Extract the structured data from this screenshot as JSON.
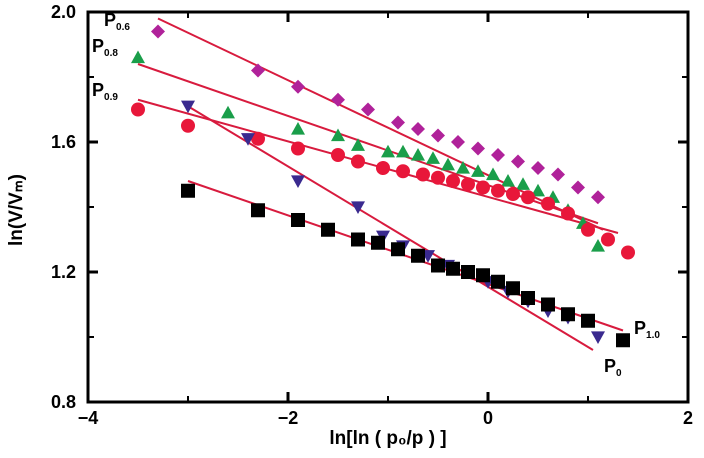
{
  "chart_data": {
    "type": "scatter",
    "xlabel": "ln[ln ( p₀/p ) ]",
    "ylabel": "ln(V/Vₘ)",
    "xlim": [
      -4,
      2
    ],
    "ylim": [
      0.8,
      2.0
    ],
    "x_ticks": [
      "−4",
      "−2",
      "0",
      "2"
    ],
    "y_ticks": [
      "0.8",
      "1.2",
      "1.6",
      "2.0"
    ],
    "grid": false,
    "series": [
      {
        "name": "P0.6",
        "label_main": "P",
        "label_sub": "0.6",
        "marker": "diamond",
        "color": "#b0229a",
        "points": [
          [
            -3.3,
            1.94
          ],
          [
            -2.3,
            1.82
          ],
          [
            -1.9,
            1.77
          ],
          [
            -1.5,
            1.73
          ],
          [
            -1.2,
            1.7
          ],
          [
            -0.9,
            1.66
          ],
          [
            -0.7,
            1.64
          ],
          [
            -0.5,
            1.62
          ],
          [
            -0.3,
            1.6
          ],
          [
            -0.1,
            1.58
          ],
          [
            0.1,
            1.56
          ],
          [
            0.3,
            1.54
          ],
          [
            0.5,
            1.52
          ],
          [
            0.7,
            1.5
          ],
          [
            0.9,
            1.46
          ],
          [
            1.1,
            1.43
          ]
        ],
        "fit": [
          [
            -3.3,
            1.98
          ],
          [
            1.15,
            1.33
          ]
        ]
      },
      {
        "name": "P0.8",
        "label_main": "P",
        "label_sub": "0.8",
        "marker": "triangle-up",
        "color": "#1a9e4a",
        "points": [
          [
            -3.5,
            1.86
          ],
          [
            -2.6,
            1.69
          ],
          [
            -1.9,
            1.64
          ],
          [
            -1.5,
            1.62
          ],
          [
            -1.3,
            1.59
          ],
          [
            -1.0,
            1.57
          ],
          [
            -0.85,
            1.57
          ],
          [
            -0.7,
            1.56
          ],
          [
            -0.55,
            1.55
          ],
          [
            -0.4,
            1.53
          ],
          [
            -0.25,
            1.52
          ],
          [
            -0.1,
            1.51
          ],
          [
            0.05,
            1.5
          ],
          [
            0.2,
            1.48
          ],
          [
            0.35,
            1.47
          ],
          [
            0.5,
            1.45
          ],
          [
            0.65,
            1.43
          ],
          [
            0.8,
            1.39
          ],
          [
            0.95,
            1.35
          ],
          [
            1.1,
            1.28
          ]
        ],
        "fit": [
          [
            -3.5,
            1.84
          ],
          [
            1.1,
            1.35
          ]
        ]
      },
      {
        "name": "P0.9",
        "label_main": "P",
        "label_sub": "0.9",
        "marker": "circle",
        "color": "#e8173a",
        "points": [
          [
            -3.5,
            1.7
          ],
          [
            -3.0,
            1.65
          ],
          [
            -2.3,
            1.61
          ],
          [
            -1.9,
            1.58
          ],
          [
            -1.5,
            1.56
          ],
          [
            -1.3,
            1.54
          ],
          [
            -1.05,
            1.52
          ],
          [
            -0.85,
            1.51
          ],
          [
            -0.65,
            1.5
          ],
          [
            -0.5,
            1.49
          ],
          [
            -0.35,
            1.48
          ],
          [
            -0.2,
            1.47
          ],
          [
            -0.05,
            1.46
          ],
          [
            0.1,
            1.45
          ],
          [
            0.25,
            1.44
          ],
          [
            0.4,
            1.43
          ],
          [
            0.6,
            1.41
          ],
          [
            0.8,
            1.38
          ],
          [
            1.0,
            1.33
          ],
          [
            1.2,
            1.3
          ],
          [
            1.4,
            1.26
          ]
        ],
        "fit": [
          [
            -3.5,
            1.73
          ],
          [
            1.3,
            1.32
          ]
        ]
      },
      {
        "name": "P0",
        "label_main": "P",
        "label_sub": "0",
        "marker": "triangle-down",
        "color": "#3a2a8f",
        "points": [
          [
            -3.0,
            1.71
          ],
          [
            -2.4,
            1.61
          ],
          [
            -1.9,
            1.48
          ],
          [
            -1.3,
            1.4
          ],
          [
            -1.05,
            1.31
          ],
          [
            -0.85,
            1.28
          ],
          [
            -0.6,
            1.25
          ],
          [
            -0.4,
            1.22
          ],
          [
            -0.2,
            1.2
          ],
          [
            0.0,
            1.17
          ],
          [
            0.2,
            1.14
          ],
          [
            0.4,
            1.11
          ],
          [
            0.6,
            1.08
          ],
          [
            0.8,
            1.06
          ],
          [
            1.1,
            1.0
          ]
        ],
        "fit": [
          [
            -3.0,
            1.71
          ],
          [
            1.05,
            0.96
          ]
        ]
      },
      {
        "name": "P1.0",
        "label_main": "P",
        "label_sub": "1.0",
        "marker": "square",
        "color": "#000000",
        "points": [
          [
            -3.0,
            1.45
          ],
          [
            -2.3,
            1.39
          ],
          [
            -1.9,
            1.36
          ],
          [
            -1.6,
            1.33
          ],
          [
            -1.3,
            1.3
          ],
          [
            -1.1,
            1.29
          ],
          [
            -0.9,
            1.27
          ],
          [
            -0.7,
            1.25
          ],
          [
            -0.5,
            1.22
          ],
          [
            -0.35,
            1.21
          ],
          [
            -0.2,
            1.2
          ],
          [
            -0.05,
            1.19
          ],
          [
            0.1,
            1.17
          ],
          [
            0.25,
            1.15
          ],
          [
            0.4,
            1.12
          ],
          [
            0.6,
            1.1
          ],
          [
            0.8,
            1.07
          ],
          [
            1.0,
            1.05
          ],
          [
            1.35,
            0.99
          ]
        ],
        "fit": [
          [
            -3.0,
            1.48
          ],
          [
            1.35,
            1.02
          ]
        ]
      }
    ]
  }
}
